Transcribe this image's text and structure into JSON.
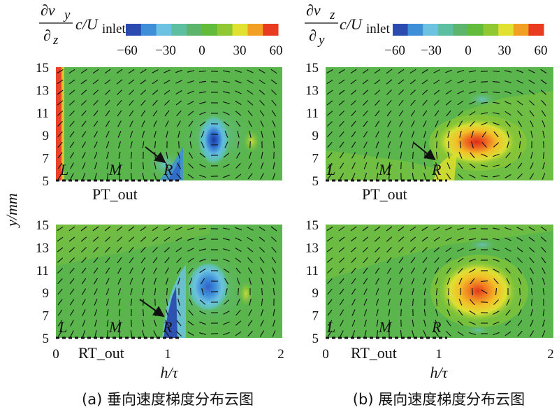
{
  "panels": [
    {
      "id": "a",
      "colorbar": {
        "numerator": "∂v",
        "num_sub": "y",
        "denominator": "∂",
        "den_sub": "z",
        "tail": "c/U",
        "tail_sub": "inlet",
        "ticks": [
          "−60",
          "−30",
          "0",
          "30",
          "60"
        ]
      },
      "plots": [
        {
          "tag": "PT_out",
          "markers": [
            "L",
            "M",
            "R"
          ],
          "vortex": {
            "x": 1.4,
            "y": 8.7,
            "sign": "negative",
            "peak": -55
          },
          "features": [
            "wall-strip-left",
            "negative-streak-near-R"
          ]
        },
        {
          "tag": "RT_out",
          "markers": [
            "L",
            "M",
            "R"
          ],
          "vortex": {
            "x": 1.4,
            "y": 9.4,
            "sign": "negative",
            "peak": -40
          },
          "features": [
            "negative-streak-near-R"
          ]
        }
      ],
      "caption": "(a) 垂向速度梯度分布云图"
    },
    {
      "id": "b",
      "colorbar": {
        "numerator": "∂v",
        "num_sub": "z",
        "denominator": "∂",
        "den_sub": "y",
        "tail": "c/U",
        "tail_sub": "inlet",
        "ticks": [
          "−60",
          "−30",
          "0",
          "30",
          "60"
        ]
      },
      "plots": [
        {
          "tag": "PT_out",
          "markers": [
            "L",
            "M",
            "R"
          ],
          "vortex": {
            "x": 1.45,
            "y": 8.7,
            "sign": "positive",
            "peak": 55
          }
        },
        {
          "tag": "RT_out",
          "markers": [
            "L",
            "M",
            "R"
          ],
          "vortex": {
            "x": 1.4,
            "y": 9.2,
            "sign": "positive",
            "peak": 50
          }
        }
      ],
      "caption": "(b) 展向速度梯度分布云图"
    }
  ],
  "axes": {
    "y_label": "y/mm",
    "y_ticks": [
      "15",
      "13",
      "11",
      "9",
      "7",
      "5"
    ],
    "x_label": "h/τ",
    "x_ticks": [
      "0",
      "1",
      "2"
    ],
    "x_range": [
      0,
      2
    ],
    "y_range": [
      5,
      15
    ]
  },
  "colors": {
    "scale": [
      "#2b4bb0",
      "#3f8fd8",
      "#6cc2e0",
      "#5cbfa0",
      "#5db56b",
      "#62bb3a",
      "#8fc832",
      "#e2e030",
      "#f2a024",
      "#e83b20"
    ],
    "background_field": "#5fb848",
    "arrow": "#111111"
  }
}
